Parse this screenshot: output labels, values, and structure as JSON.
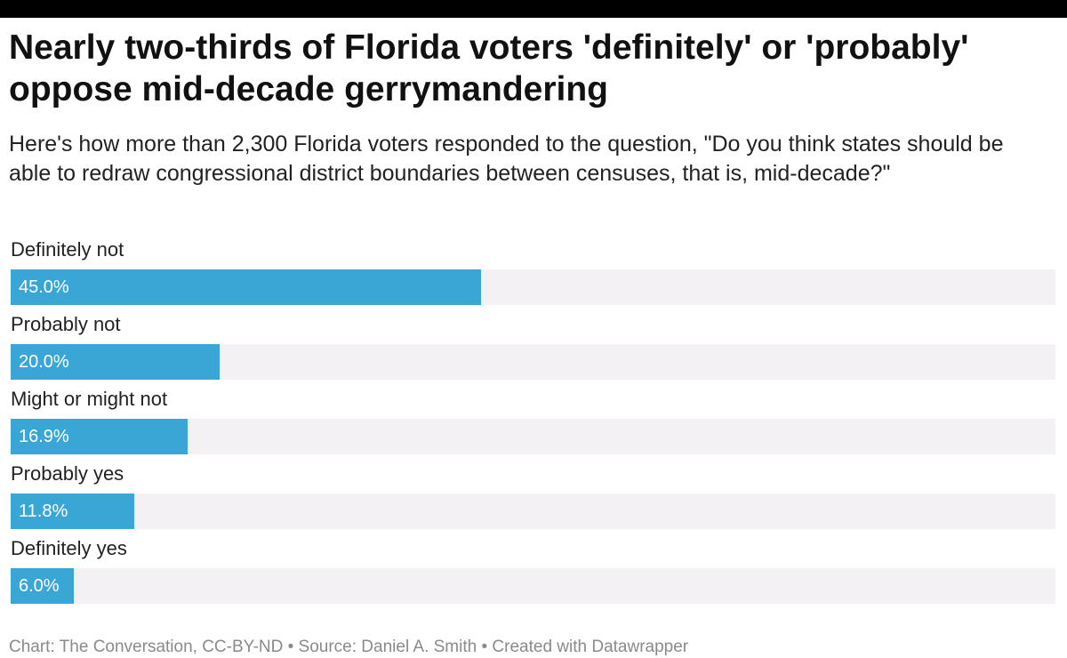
{
  "chart_data": {
    "type": "bar",
    "orientation": "horizontal",
    "title": "Nearly two-thirds of Florida voters 'definitely' or 'probably' oppose mid-decade gerrymandering",
    "subtitle": "Here's how more than 2,300 Florida voters responded to the question, \"Do you think states should be able to redraw congressional district boundaries between censuses, that is, mid-decade?\"",
    "categories": [
      "Definitely not",
      "Probably not",
      "Might or might not",
      "Probably yes",
      "Definitely yes"
    ],
    "values": [
      45.0,
      20.0,
      16.9,
      11.8,
      6.0
    ],
    "value_labels": [
      "45.0%",
      "20.0%",
      "16.9%",
      "11.8%",
      "6.0%"
    ],
    "xlim": [
      0,
      100
    ],
    "unit": "%",
    "grid": false,
    "legend": "none",
    "bar_color": "#3aa6d6",
    "track_color": "#f3f1f4"
  },
  "footer": "Chart: The Conversation, CC-BY-ND • Source: Daniel A. Smith • Created with Datawrapper"
}
